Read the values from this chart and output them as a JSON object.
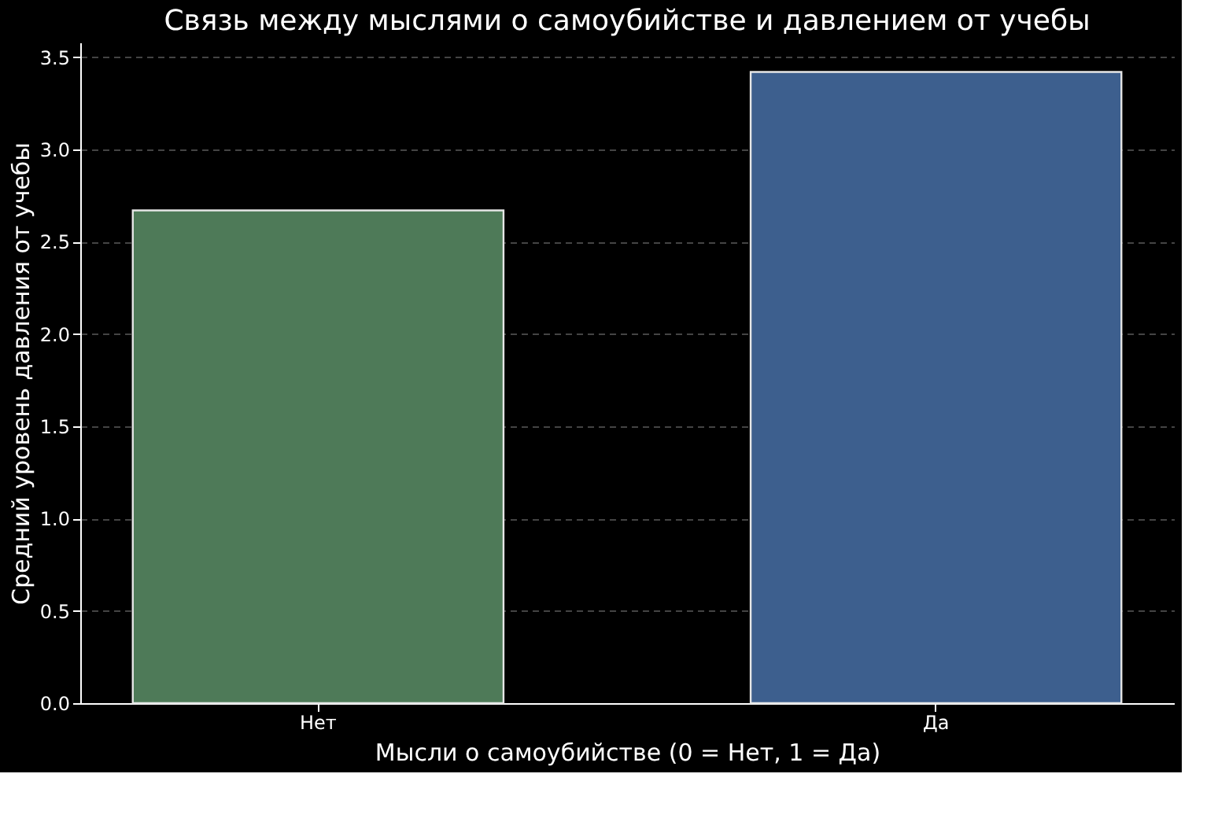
{
  "chart_data": {
    "type": "bar",
    "title": "Связь между мыслями о самоубийстве и давлением от учебы",
    "xlabel": "Мысли о самоубийстве (0 = Нет, 1 = Да)",
    "ylabel": "Средний уровень давления от учебы",
    "categories": [
      "Нет",
      "Да"
    ],
    "values": [
      2.67,
      3.42
    ],
    "colors": [
      "#4e7a58",
      "#3d5f8e"
    ],
    "ylim": [
      0,
      3.58
    ],
    "yticks": [
      {
        "value": 0,
        "label": "0.0"
      },
      0.5,
      {
        "value": 1,
        "label": "1.0"
      },
      1.5,
      {
        "value": 2,
        "label": "2.0"
      },
      2.5,
      {
        "value": 3,
        "label": "3.0"
      },
      3.5
    ],
    "grid": "y",
    "legend": false
  }
}
